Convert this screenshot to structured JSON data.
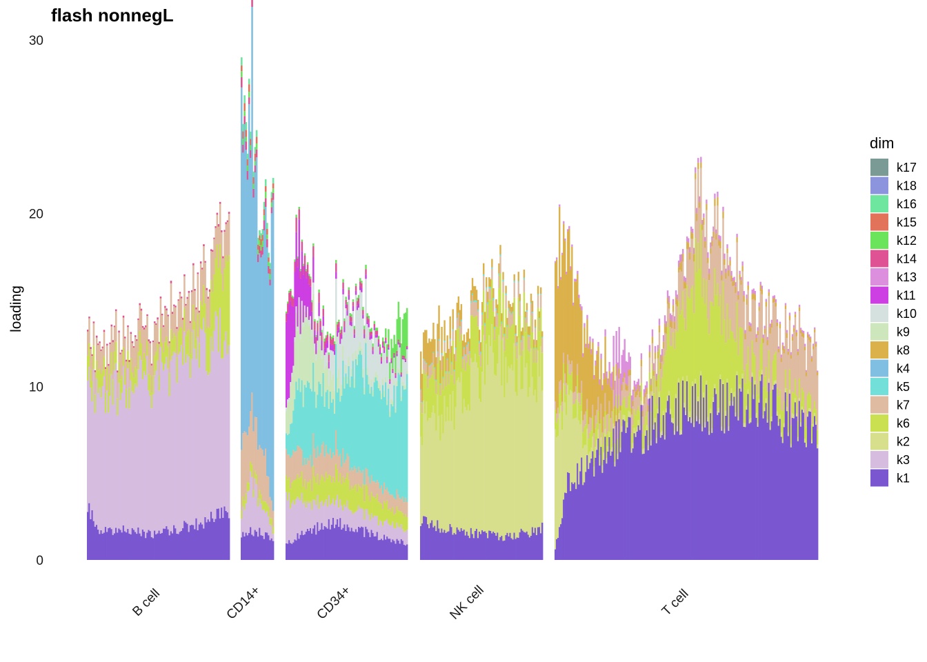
{
  "chart_data": {
    "type": "bar",
    "subtype": "stacked-structure-plot",
    "title": "flash nonnegL",
    "xlabel": "",
    "ylabel": "loading",
    "ylim": [
      0,
      30
    ],
    "yticks": [
      0,
      10,
      20,
      30
    ],
    "grid": false,
    "legend_position": "right",
    "legend_title": "dim",
    "legend": [
      {
        "name": "k17",
        "color": "#7a9a96"
      },
      {
        "name": "k18",
        "color": "#8b94dd"
      },
      {
        "name": "k16",
        "color": "#6ee6a0"
      },
      {
        "name": "k15",
        "color": "#e2735a"
      },
      {
        "name": "k12",
        "color": "#6be35a"
      },
      {
        "name": "k14",
        "color": "#df5394"
      },
      {
        "name": "k13",
        "color": "#dc8fdc"
      },
      {
        "name": "k11",
        "color": "#cd3fe3"
      },
      {
        "name": "k10",
        "color": "#d4e1df"
      },
      {
        "name": "k9",
        "color": "#cde6bb"
      },
      {
        "name": "k8",
        "color": "#dbb14b"
      },
      {
        "name": "k4",
        "color": "#80bfe2"
      },
      {
        "name": "k5",
        "color": "#72e0d8"
      },
      {
        "name": "k7",
        "color": "#dfbba1"
      },
      {
        "name": "k6",
        "color": "#cbe050"
      },
      {
        "name": "k2",
        "color": "#d7df8d"
      },
      {
        "name": "k3",
        "color": "#d6bde0"
      },
      {
        "name": "k1",
        "color": "#7a57d1"
      }
    ],
    "groups": [
      {
        "name": "B cell",
        "n_samples": 96,
        "profiles": {
          "k1": [
            [
              0,
              3.0
            ],
            [
              0.08,
              1.8
            ],
            [
              0.5,
              1.5
            ],
            [
              0.85,
              2.3
            ],
            [
              1,
              3.0
            ]
          ],
          "k3": [
            [
              0,
              7.2
            ],
            [
              0.15,
              8.3
            ],
            [
              0.5,
              9.0
            ],
            [
              0.8,
              10.2
            ],
            [
              1,
              10.8
            ]
          ],
          "k6": [
            [
              0,
              1.2
            ],
            [
              0.5,
              1.0
            ],
            [
              0.8,
              1.5
            ],
            [
              1,
              5.2
            ]
          ],
          "k7": [
            [
              0,
              1.3
            ],
            [
              0.5,
              1.7
            ],
            [
              0.8,
              2.0
            ],
            [
              1,
              2.0
            ]
          ],
          "k14": [
            [
              0,
              0.1
            ],
            [
              1,
              0.1
            ]
          ]
        }
      },
      {
        "name": "CD14+",
        "n_samples": 22,
        "profiles": {
          "k1": [
            [
              0,
              1.5
            ],
            [
              0.5,
              1.7
            ],
            [
              1,
              1.2
            ]
          ],
          "k3": [
            [
              0,
              1.0
            ],
            [
              0.3,
              3.0
            ],
            [
              0.7,
              1.5
            ],
            [
              1,
              0.5
            ]
          ],
          "k7": [
            [
              0,
              3.5
            ],
            [
              0.4,
              3.0
            ],
            [
              0.7,
              2.5
            ],
            [
              1,
              1.0
            ]
          ],
          "k6": [
            [
              0,
              0.5
            ],
            [
              1,
              0.5
            ]
          ],
          "k4": [
            [
              0,
              17.5
            ],
            [
              0.3,
              15.5
            ],
            [
              0.6,
              12.5
            ],
            [
              1,
              15.5
            ]
          ],
          "k12": [
            [
              0,
              0.3
            ],
            [
              1,
              0.3
            ]
          ],
          "k14": [
            [
              0,
              0.5
            ],
            [
              1,
              0.4
            ]
          ],
          "k15": [
            [
              0,
              0.4
            ],
            [
              1,
              0.3
            ]
          ],
          "k16": [
            [
              0,
              0.4
            ],
            [
              1,
              0.3
            ]
          ]
        }
      },
      {
        "name": "CD34+",
        "n_samples": 86,
        "profiles": {
          "k1": [
            [
              0,
              1.0
            ],
            [
              0.4,
              2.3
            ],
            [
              0.7,
              1.5
            ],
            [
              1,
              1.0
            ]
          ],
          "k3": [
            [
              0,
              2.5
            ],
            [
              0.2,
              1.5
            ],
            [
              0.5,
              1.2
            ],
            [
              1,
              0.8
            ]
          ],
          "k7": [
            [
              0,
              1.5
            ],
            [
              0.3,
              1.5
            ],
            [
              0.6,
              1.0
            ],
            [
              1,
              0.8
            ]
          ],
          "k6": [
            [
              0,
              1.0
            ],
            [
              0.4,
              1.5
            ],
            [
              0.7,
              1.2
            ],
            [
              1,
              0.8
            ]
          ],
          "k5": [
            [
              0,
              1.0
            ],
            [
              0.15,
              4.0
            ],
            [
              0.4,
              3.0
            ],
            [
              0.6,
              6.0
            ],
            [
              0.8,
              5.0
            ],
            [
              1,
              6.5
            ]
          ],
          "k9": [
            [
              0,
              1.5
            ],
            [
              0.15,
              4.0
            ],
            [
              0.3,
              2.0
            ],
            [
              0.5,
              0.5
            ],
            [
              1,
              0.2
            ]
          ],
          "k10": [
            [
              0,
              0.2
            ],
            [
              0.3,
              0.5
            ],
            [
              0.5,
              3.0
            ],
            [
              0.7,
              2.5
            ],
            [
              1,
              1.2
            ]
          ],
          "k11": [
            [
              0,
              5.0
            ],
            [
              0.12,
              3.0
            ],
            [
              0.25,
              0.6
            ],
            [
              0.4,
              0.3
            ],
            [
              1,
              0.1
            ]
          ],
          "k12": [
            [
              0,
              0.1
            ],
            [
              0.8,
              0.2
            ],
            [
              1,
              2.5
            ]
          ],
          "k14": [
            [
              0,
              0.6
            ],
            [
              0.3,
              0.4
            ],
            [
              1,
              0.1
            ]
          ]
        }
      },
      {
        "name": "NK cell",
        "n_samples": 88,
        "profiles": {
          "k1": [
            [
              0,
              2.2
            ],
            [
              0.35,
              1.6
            ],
            [
              0.7,
              1.3
            ],
            [
              1,
              1.8
            ]
          ],
          "k2": [
            [
              0,
              5.5
            ],
            [
              0.3,
              7.5
            ],
            [
              0.6,
              10.5
            ],
            [
              1,
              9.0
            ]
          ],
          "k6": [
            [
              0,
              2.0
            ],
            [
              0.3,
              2.5
            ],
            [
              0.6,
              2.5
            ],
            [
              1,
              2.2
            ]
          ],
          "k7": [
            [
              0,
              0.6
            ],
            [
              0.5,
              0.8
            ],
            [
              1,
              0.8
            ]
          ],
          "k8": [
            [
              0,
              1.8
            ],
            [
              0.3,
              0.9
            ],
            [
              0.6,
              0.5
            ],
            [
              1,
              0.4
            ]
          ],
          "k5": [
            [
              0,
              0.05
            ],
            [
              0.5,
              0.1
            ],
            [
              1,
              0.05
            ]
          ]
        }
      },
      {
        "name": "T cell",
        "n_samples": 190,
        "profiles": {
          "k1": [
            [
              0,
              0.6
            ],
            [
              0.05,
              4.5
            ],
            [
              0.2,
              6.5
            ],
            [
              0.5,
              9.0
            ],
            [
              0.8,
              9.0
            ],
            [
              1,
              7.0
            ]
          ],
          "k2": [
            [
              0,
              6.0
            ],
            [
              0.05,
              5.5
            ],
            [
              0.13,
              0.8
            ],
            [
              0.2,
              0.3
            ],
            [
              1,
              0.2
            ]
          ],
          "k8": [
            [
              0,
              8.0
            ],
            [
              0.1,
              4.5
            ],
            [
              0.18,
              2.5
            ],
            [
              0.25,
              0.3
            ],
            [
              0.5,
              0.4
            ],
            [
              1,
              0.2
            ]
          ],
          "k13": [
            [
              0,
              0.1
            ],
            [
              0.2,
              0.3
            ],
            [
              0.24,
              2.5
            ],
            [
              0.3,
              0.4
            ],
            [
              1,
              0.1
            ]
          ],
          "k6": [
            [
              0,
              1.0
            ],
            [
              0.2,
              1.0
            ],
            [
              0.35,
              1.0
            ],
            [
              0.55,
              7.5
            ],
            [
              0.75,
              1.8
            ],
            [
              1,
              0.8
            ]
          ],
          "k7": [
            [
              0,
              0.5
            ],
            [
              0.25,
              1.0
            ],
            [
              0.45,
              1.0
            ],
            [
              0.55,
              3.5
            ],
            [
              0.75,
              2.8
            ],
            [
              1,
              3.5
            ]
          ]
        }
      }
    ],
    "group_label_text": [
      "B cell",
      "CD14+",
      "CD34+",
      "NK cell",
      "T cell"
    ]
  }
}
